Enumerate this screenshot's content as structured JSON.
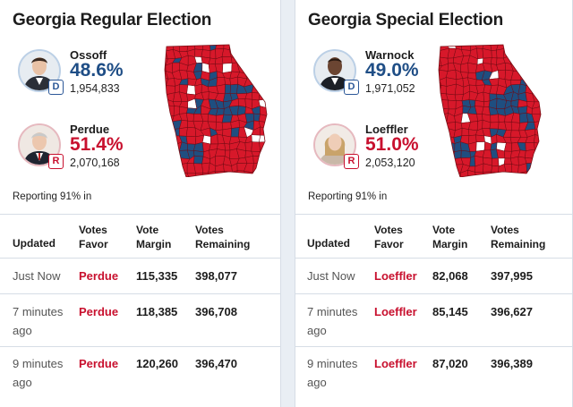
{
  "regular": {
    "title": "Georgia Regular Election",
    "dem": {
      "name": "Ossoff",
      "party": "D",
      "pct": "48.6%",
      "votes": "1,954,833",
      "avatar_icon": "candidate-photo"
    },
    "rep": {
      "name": "Perdue",
      "party": "R",
      "pct": "51.4%",
      "votes": "2,070,168",
      "avatar_icon": "candidate-photo"
    },
    "reporting": "Reporting 91% in",
    "headers": {
      "updated": "Updated",
      "votes_favor": "Votes Favor",
      "vote_margin": "Vote Margin",
      "votes_remaining": "Votes Remaining"
    },
    "rows": [
      {
        "updated": "Just Now",
        "favor": "Perdue",
        "margin": "115,335",
        "remaining": "398,077"
      },
      {
        "updated": "7 minutes ago",
        "favor": "Perdue",
        "margin": "118,385",
        "remaining": "396,708"
      },
      {
        "updated": "9 minutes ago",
        "favor": "Perdue",
        "margin": "120,260",
        "remaining": "396,470"
      }
    ]
  },
  "special": {
    "title": "Georgia Special Election",
    "dem": {
      "name": "Warnock",
      "party": "D",
      "pct": "49.0%",
      "votes": "1,971,052",
      "avatar_icon": "candidate-photo"
    },
    "rep": {
      "name": "Loeffler",
      "party": "R",
      "pct": "51.0%",
      "votes": "2,053,120",
      "avatar_icon": "candidate-photo"
    },
    "reporting": "Reporting 91% in",
    "headers": {
      "updated": "Updated",
      "votes_favor": "Votes Favor",
      "vote_margin": "Vote Margin",
      "votes_remaining": "Votes Remaining"
    },
    "rows": [
      {
        "updated": "Just Now",
        "favor": "Loeffler",
        "margin": "82,068",
        "remaining": "397,995"
      },
      {
        "updated": "7 minutes ago",
        "favor": "Loeffler",
        "margin": "85,145",
        "remaining": "396,627"
      },
      {
        "updated": "9 minutes ago",
        "favor": "Loeffler",
        "margin": "87,020",
        "remaining": "396,389"
      }
    ]
  },
  "colors": {
    "dem": "#1f4e86",
    "rep": "#c8102e",
    "map_rep": "#d7182a",
    "map_dem": "#1f4e80",
    "map_none": "#ffffff"
  }
}
